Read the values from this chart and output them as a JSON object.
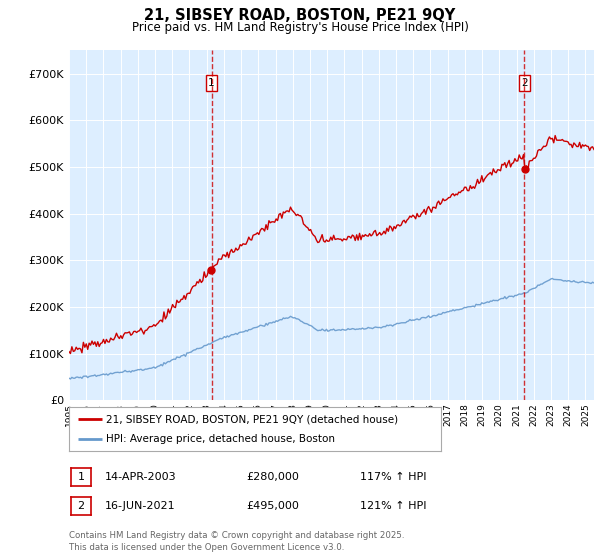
{
  "title": "21, SIBSEY ROAD, BOSTON, PE21 9QY",
  "subtitle": "Price paid vs. HM Land Registry's House Price Index (HPI)",
  "legend_line1": "21, SIBSEY ROAD, BOSTON, PE21 9QY (detached house)",
  "legend_line2": "HPI: Average price, detached house, Boston",
  "marker1_date": "14-APR-2003",
  "marker1_price": "£280,000",
  "marker1_hpi": "117% ↑ HPI",
  "marker2_date": "16-JUN-2021",
  "marker2_price": "£495,000",
  "marker2_hpi": "121% ↑ HPI",
  "footer": "Contains HM Land Registry data © Crown copyright and database right 2025.\nThis data is licensed under the Open Government Licence v3.0.",
  "hpi_color": "#6699cc",
  "price_color": "#cc0000",
  "plot_bg_color": "#ddeeff",
  "ylim": [
    0,
    750000
  ],
  "xlim_start": 1995.0,
  "xlim_end": 2025.5,
  "marker1_year": 2003.28,
  "marker2_year": 2021.46,
  "marker1_price_val": 280000,
  "marker2_price_val": 495000
}
